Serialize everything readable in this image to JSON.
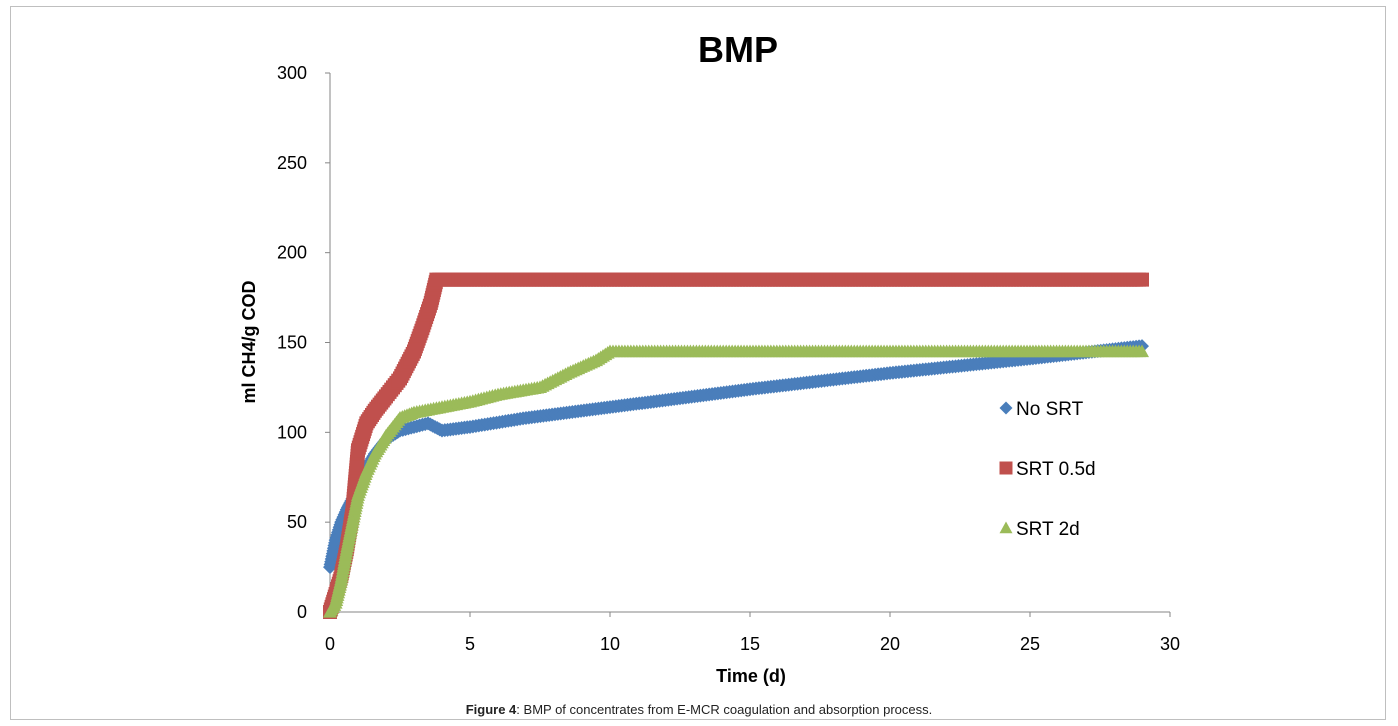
{
  "chart_data": {
    "type": "scatter",
    "title": "BMP",
    "xlabel": "Time (d)",
    "ylabel": "ml CH4/g COD",
    "xlim": [
      0,
      30
    ],
    "ylim": [
      0,
      300
    ],
    "xticks": [
      "0",
      "5",
      "10",
      "15",
      "20",
      "25",
      "30"
    ],
    "yticks": [
      "0",
      "50",
      "100",
      "150",
      "200",
      "250",
      "300"
    ],
    "grid": false,
    "legend_position": "right",
    "series": [
      {
        "name": "No SRT",
        "marker": "diamond",
        "color": "#4a7ebb",
        "x": [
          0,
          0.2,
          0.4,
          0.6,
          0.8,
          1.0,
          1.3,
          1.6,
          2.0,
          2.5,
          3.0,
          3.5,
          4.0,
          5,
          7,
          10,
          15,
          20,
          25,
          29
        ],
        "y": [
          25,
          40,
          50,
          57,
          63,
          70,
          80,
          88,
          96,
          101,
          103,
          105,
          101,
          103,
          108,
          114,
          124,
          133,
          141,
          148
        ]
      },
      {
        "name": "SRT 0.5d",
        "marker": "square",
        "color": "#c0504d",
        "x": [
          0,
          0.2,
          0.4,
          0.6,
          0.8,
          1.0,
          1.3,
          1.6,
          2.0,
          2.5,
          3.0,
          3.3,
          3.6,
          3.8,
          4.0,
          5,
          10,
          15,
          20,
          25,
          29
        ],
        "y": [
          0,
          10,
          20,
          35,
          55,
          90,
          105,
          112,
          120,
          130,
          145,
          158,
          172,
          185,
          185,
          185,
          185,
          185,
          185,
          185,
          185
        ]
      },
      {
        "name": "SRT 2d",
        "marker": "triangle",
        "color": "#9bbb59",
        "x": [
          0,
          0.2,
          0.4,
          0.6,
          0.8,
          1.0,
          1.3,
          1.6,
          2.0,
          2.5,
          3.0,
          4.0,
          5.0,
          6.0,
          7.5,
          8.5,
          9.5,
          10,
          15,
          20,
          25,
          29
        ],
        "y": [
          0,
          5,
          18,
          35,
          50,
          65,
          78,
          88,
          98,
          108,
          111,
          114,
          117,
          121,
          125,
          133,
          140,
          145,
          145,
          145,
          145,
          145
        ]
      }
    ]
  },
  "caption": {
    "label": "Figure 4",
    "text": ": BMP of concentrates from E-MCR coagulation and absorption process."
  }
}
